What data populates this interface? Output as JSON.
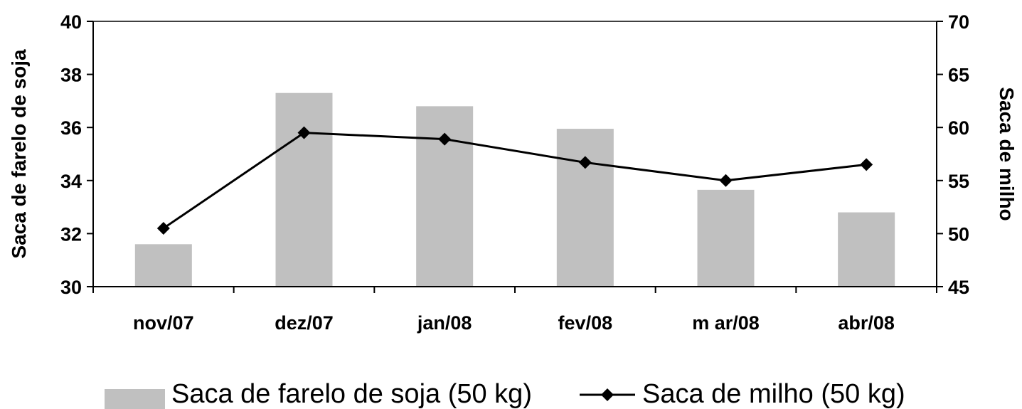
{
  "chart_data": {
    "type": "bar",
    "categories": [
      "nov/07",
      "dez/07",
      "jan/08",
      "fev/08",
      "m ar/08",
      "abr/08"
    ],
    "series": [
      {
        "name": "Saca de farelo de soja (50 kg)",
        "type": "bar",
        "axis": "left",
        "color": "#c0c0c0",
        "values": [
          31.6,
          37.3,
          36.8,
          35.95,
          33.65,
          32.8
        ]
      },
      {
        "name": "Saca de milho (50 kg)",
        "type": "line",
        "axis": "right",
        "color": "#000000",
        "marker": "diamond",
        "values": [
          50.5,
          59.5,
          58.9,
          56.7,
          55.0,
          56.5
        ]
      }
    ],
    "ylabel": "Saca de farelo de soja",
    "y2label": "Saca de milho",
    "ylim": [
      30,
      40
    ],
    "y2lim": [
      45,
      70
    ],
    "yticks": [
      "30",
      "32",
      "34",
      "36",
      "38",
      "40"
    ],
    "y2ticks": [
      "45",
      "50",
      "55",
      "60",
      "65",
      "70"
    ],
    "grid": false,
    "legend": "bottom"
  }
}
